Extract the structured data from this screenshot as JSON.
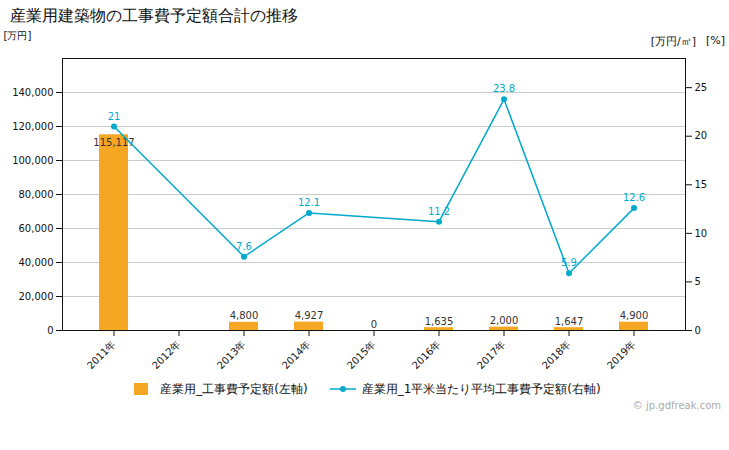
{
  "chart_data": {
    "type": "bar",
    "title": "産業用建築物の工事費予定額合計の推移",
    "ylabel": "[万円]",
    "y2label": "[万円/㎡]",
    "annotations": [
      "[%]",
      "© jp.gdfreak.com"
    ],
    "categories": [
      "2011年",
      "2012年",
      "2013年",
      "2014年",
      "2015年",
      "2016年",
      "2017年",
      "2018年",
      "2019年"
    ],
    "series": [
      {
        "name": "産業用_工事費予定額(左軸)",
        "type": "bar",
        "color": "#f5a623",
        "values": [
          115117,
          0,
          4800,
          4927,
          0,
          1635,
          2000,
          1647,
          4900
        ],
        "value_labels": [
          "115,117",
          null,
          "4,800",
          "4,927",
          "0",
          "1,635",
          "2,000",
          "1,647",
          "4,900"
        ]
      },
      {
        "name": "産業用_1平米当たり平均工事費予定額(右軸)",
        "type": "line",
        "axis": "y2",
        "color": "#00aacc",
        "marker": "circle",
        "line_style": "solid",
        "values": [
          21.0,
          null,
          7.6,
          12.1,
          null,
          11.2,
          23.8,
          5.9,
          12.6
        ]
      }
    ],
    "ylim": [
      0,
      160000
    ],
    "yticks": [
      0,
      {
        "value": 20000,
        "label": "20,000"
      },
      {
        "value": 40000,
        "label": "40,000"
      },
      {
        "value": 60000,
        "label": "60,000"
      },
      {
        "value": 80000,
        "label": "80,000"
      },
      {
        "value": 100000,
        "label": "100,000"
      },
      {
        "value": 120000,
        "label": "120,000"
      },
      {
        "value": 140000,
        "label": "140,000"
      }
    ],
    "y2lim": [
      0,
      28
    ],
    "y2ticks": [
      0,
      5,
      10,
      15,
      20,
      25
    ],
    "grid": true,
    "legend": "bottom",
    "data_labels": true
  }
}
